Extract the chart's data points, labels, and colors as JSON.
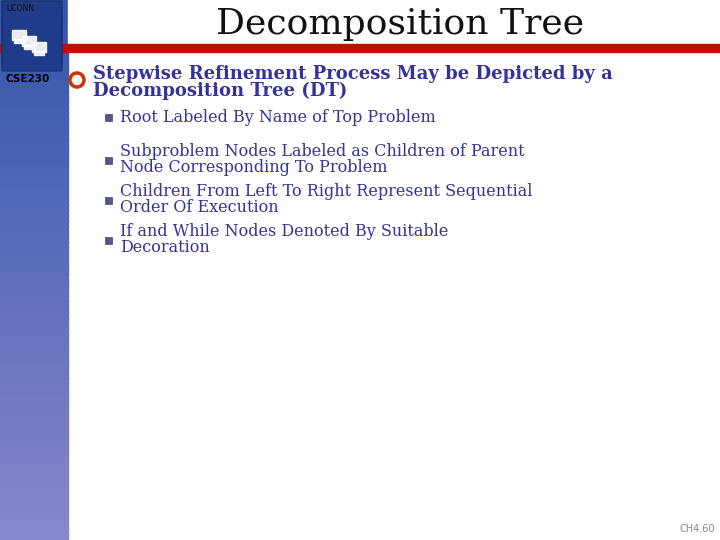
{
  "title": "Decomposition Tree",
  "title_color": "#111111",
  "title_fontsize": 26,
  "background_color": "#ffffff",
  "left_bar_top_color": "#3344aa",
  "left_bar_bottom_color": "#8899cc",
  "red_line_color": "#bb1100",
  "cse_label": "CSE230",
  "footer": "CH4.60",
  "bullet_color": "#cc3300",
  "text_color": "#333399",
  "main_bullet_line1": "Stepwise Refinement Process May be Depicted by a",
  "main_bullet_line2": "Decomposition Tree (DT)",
  "sub_bullets": [
    [
      "Root Labeled By Name of Top Problem"
    ],
    [
      "Subproblem Nodes Labeled as Children of Parent",
      "Node Corresponding To Problem"
    ],
    [
      "Children From Left To Right Represent Sequential",
      "Order Of Execution"
    ],
    [
      "If and While Nodes Denoted By Suitable",
      "Decoration"
    ]
  ]
}
